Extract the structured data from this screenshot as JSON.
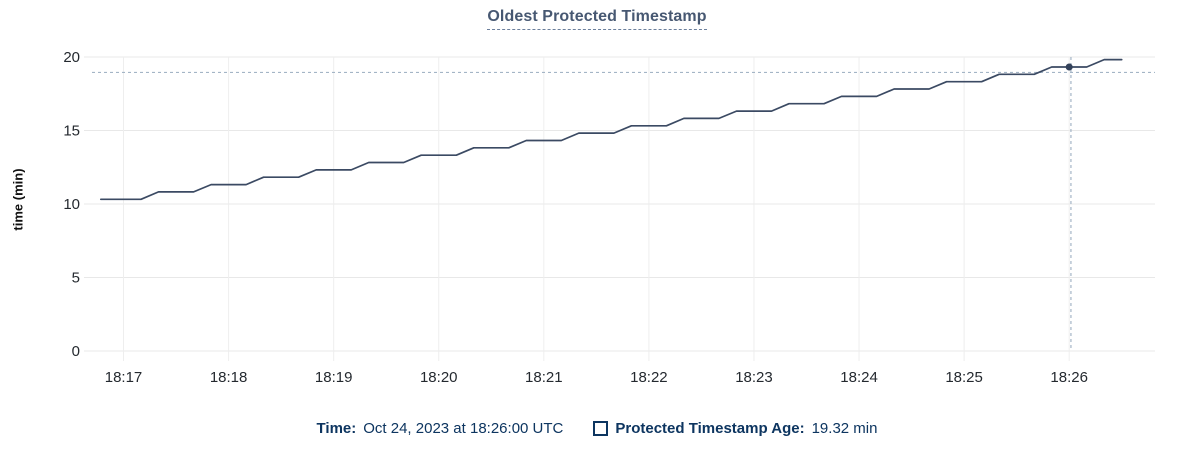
{
  "header": {
    "title": "Oldest Protected Timestamp"
  },
  "colors": {
    "title": "#475872",
    "legend_text": "#0d3560",
    "line": "#3b4a63",
    "dot": "#33415a",
    "crosshair": "#a4b5c6",
    "grid_h": "#e8e8e8",
    "grid_v": "#eeeeee",
    "tick_text": "#24292f"
  },
  "legend": {
    "time_label": "Time:",
    "time_value": "Oct 24, 2023 at 18:26:00 UTC",
    "series_label": "Protected Timestamp Age:",
    "series_value": "19.32 min"
  },
  "chart_data": {
    "type": "line",
    "title": "Oldest Protected Timestamp",
    "xlabel": "",
    "ylabel": "time (min)",
    "ylim": [
      0,
      20
    ],
    "y_ticks": [
      0,
      5,
      10,
      15,
      20
    ],
    "x_ticks": [
      "18:17",
      "18:18",
      "18:19",
      "18:20",
      "18:21",
      "18:22",
      "18:23",
      "18:24",
      "18:25",
      "18:26"
    ],
    "x_domain": [
      "18:16:42",
      "18:26:49"
    ],
    "grid": true,
    "legend_position": "bottom",
    "series": [
      {
        "name": "Protected Timestamp Age",
        "unit": "min",
        "points": [
          [
            "18:16:47",
            10.32
          ],
          [
            "18:16:50",
            10.32
          ],
          [
            "18:17:00",
            10.32
          ],
          [
            "18:17:10",
            10.32
          ],
          [
            "18:17:20",
            10.82
          ],
          [
            "18:17:30",
            10.82
          ],
          [
            "18:17:40",
            10.82
          ],
          [
            "18:17:50",
            11.32
          ],
          [
            "18:18:00",
            11.32
          ],
          [
            "18:18:10",
            11.32
          ],
          [
            "18:18:20",
            11.82
          ],
          [
            "18:18:30",
            11.82
          ],
          [
            "18:18:40",
            11.82
          ],
          [
            "18:18:50",
            12.32
          ],
          [
            "18:19:00",
            12.32
          ],
          [
            "18:19:10",
            12.32
          ],
          [
            "18:19:20",
            12.82
          ],
          [
            "18:19:30",
            12.82
          ],
          [
            "18:19:40",
            12.82
          ],
          [
            "18:19:50",
            13.32
          ],
          [
            "18:20:00",
            13.32
          ],
          [
            "18:20:10",
            13.32
          ],
          [
            "18:20:20",
            13.82
          ],
          [
            "18:20:30",
            13.82
          ],
          [
            "18:20:40",
            13.82
          ],
          [
            "18:20:50",
            14.32
          ],
          [
            "18:21:00",
            14.32
          ],
          [
            "18:21:10",
            14.32
          ],
          [
            "18:21:20",
            14.82
          ],
          [
            "18:21:30",
            14.82
          ],
          [
            "18:21:40",
            14.82
          ],
          [
            "18:21:50",
            15.32
          ],
          [
            "18:22:00",
            15.32
          ],
          [
            "18:22:10",
            15.32
          ],
          [
            "18:22:20",
            15.82
          ],
          [
            "18:22:30",
            15.82
          ],
          [
            "18:22:40",
            15.82
          ],
          [
            "18:22:50",
            16.32
          ],
          [
            "18:23:00",
            16.32
          ],
          [
            "18:23:10",
            16.32
          ],
          [
            "18:23:20",
            16.82
          ],
          [
            "18:23:30",
            16.82
          ],
          [
            "18:23:40",
            16.82
          ],
          [
            "18:23:50",
            17.32
          ],
          [
            "18:24:00",
            17.32
          ],
          [
            "18:24:10",
            17.32
          ],
          [
            "18:24:20",
            17.82
          ],
          [
            "18:24:30",
            17.82
          ],
          [
            "18:24:40",
            17.82
          ],
          [
            "18:24:50",
            18.32
          ],
          [
            "18:25:00",
            18.32
          ],
          [
            "18:25:10",
            18.32
          ],
          [
            "18:25:20",
            18.82
          ],
          [
            "18:25:30",
            18.82
          ],
          [
            "18:25:40",
            18.82
          ],
          [
            "18:25:50",
            19.32
          ],
          [
            "18:26:00",
            19.32
          ],
          [
            "18:26:10",
            19.32
          ],
          [
            "18:26:20",
            19.82
          ],
          [
            "18:26:30",
            19.82
          ]
        ]
      }
    ],
    "highlight": {
      "time": "18:26:00",
      "value": 19.32,
      "crosshair_time": "18:26:01",
      "crosshair_value": 18.95
    }
  }
}
